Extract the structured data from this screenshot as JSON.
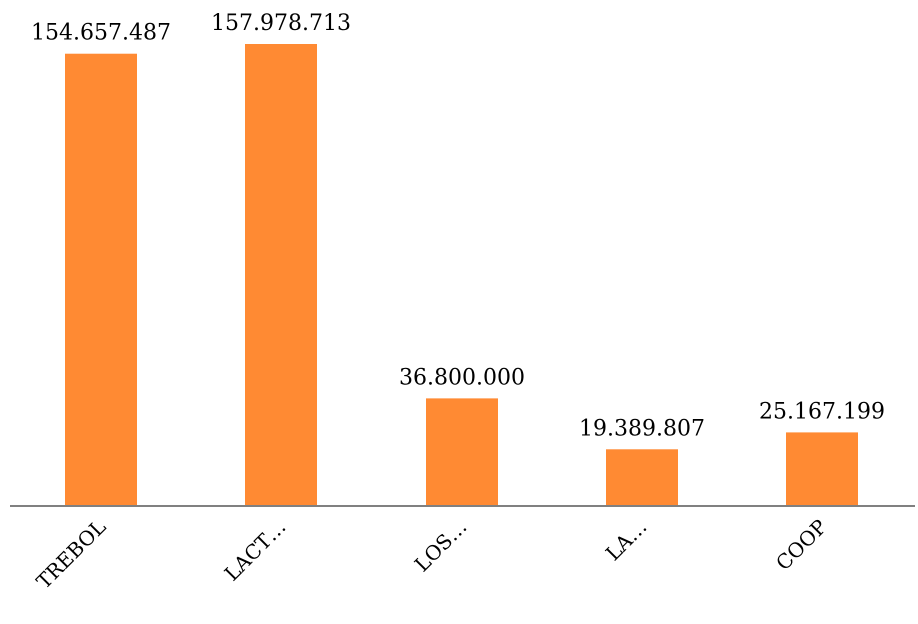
{
  "chart_data": {
    "type": "bar",
    "categories": [
      "TREBOL",
      "LACT…",
      "LOS…",
      "LA…",
      "COOP"
    ],
    "values": [
      154657487,
      157978713,
      36800000,
      19389807,
      25167199
    ],
    "value_labels": [
      "154.657.487",
      "157.978.713",
      "36.800.000",
      "19.389.807",
      "25.167.199"
    ],
    "title": "",
    "xlabel": "",
    "ylabel": "",
    "ylim": [
      0,
      160000000
    ],
    "grid": false,
    "legend": "none",
    "colors": {
      "bar": "#FF8A33",
      "axis": "#808080"
    }
  }
}
